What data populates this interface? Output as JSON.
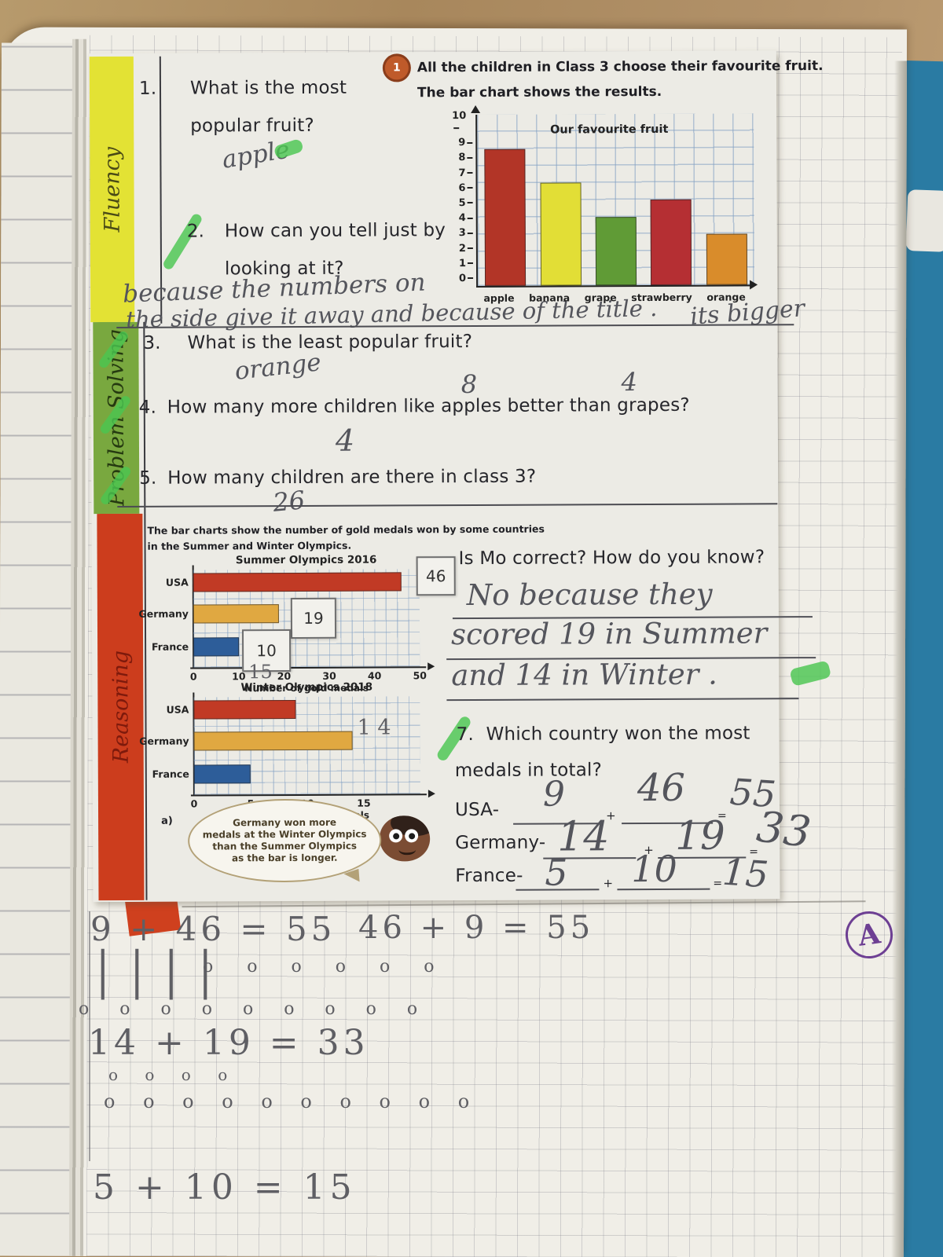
{
  "sidebar": {
    "fluency": "Fluency",
    "problem_solving": "Problem Solving",
    "reasoning": "Reasoning"
  },
  "header": {
    "badge": "1",
    "intro1": "All the children in Class 3 choose their favourite fruit.",
    "intro2": "The bar chart shows the results."
  },
  "questions": {
    "q1_num": "1.",
    "q1_text1": "What is the most",
    "q1_text2": "popular fruit?",
    "q1_answer": "apple",
    "q2_num": "2.",
    "q2_text1": "How can you tell just by",
    "q2_text2": "looking at it?",
    "q2_ans1": "because the numbers on",
    "q2_ans2": "the side give it away and because of the title .",
    "q2_ans3": "its bigger",
    "q3_num": "3.",
    "q3_text": "What is the least popular fruit?",
    "q3_answer": "orange",
    "q4_num": "4.",
    "q4_text": "How many more children like apples better than grapes?",
    "q4_note8": "8",
    "q4_note4": "4",
    "q4_answer": "4",
    "q5_num": "5.",
    "q5_text": "How many children are there in class 3?",
    "q5_answer": "26"
  },
  "olympics": {
    "intro1": "The bar charts show the number of gold medals won by some countries",
    "intro2": "in the Summer and Winter Olympics.",
    "box46": "46",
    "box19": "19",
    "box10": "10",
    "pencil15": "15",
    "pencil14": "1 4",
    "a_label": "a)",
    "bubble1": "Germany won more",
    "bubble2": "medals at the Winter Olympics",
    "bubble3": "than the Summer Olympics",
    "bubble4": "as the bar is longer."
  },
  "mo": {
    "question": "Is Mo correct? How do you know?",
    "ans1": "No because they",
    "ans2": "scored 19 in Summer",
    "ans3": "and 14 in Winter ."
  },
  "q7": {
    "num": "7.",
    "text1": "Which country won the most",
    "text2": "medals in total?",
    "plus": "+",
    "equals": "=",
    "rows": [
      {
        "label": "USA-",
        "a": "9",
        "b": "46",
        "sum": "55"
      },
      {
        "label": "Germany-",
        "a": "14",
        "b": "19",
        "sum": "33"
      },
      {
        "label": "France-",
        "a": "5",
        "b": "10",
        "sum": "15"
      }
    ]
  },
  "pencil": {
    "eq1": "9 + 46 = 55",
    "eq2": "46 + 9 = 55",
    "eq3": "14 + 19 = 33",
    "eq4": "5 + 10 = 15",
    "tally": "||||",
    "circles1": "o o o o o o",
    "circles2": "o o o o o o o o o",
    "circles3": "o o o o",
    "circles4": "o o o o o o o o o o",
    "stamp": "A"
  },
  "chart_data": [
    {
      "type": "bar",
      "title": "Our favourite fruit",
      "categories": [
        "apple",
        "banana",
        "grape",
        "strawberry",
        "orange"
      ],
      "values": [
        8,
        6,
        4,
        5,
        3
      ],
      "colors": [
        "#b23527",
        "#e2de36",
        "#609b36",
        "#b52f33",
        "#d98c2b"
      ],
      "ylim": [
        0,
        10
      ],
      "yticks": [
        10,
        9,
        8,
        7,
        6,
        5,
        4,
        3,
        2,
        1,
        0
      ],
      "orientation": "vertical",
      "grid": true
    },
    {
      "type": "bar",
      "title": "Summer Olympics 2016",
      "categories": [
        "USA",
        "Germany",
        "France"
      ],
      "values": [
        46,
        19,
        10
      ],
      "colors": [
        "#c13a25",
        "#e0a841",
        "#2d5d99"
      ],
      "xlim": [
        0,
        50
      ],
      "xticks": [
        0,
        10,
        20,
        30,
        40,
        50
      ],
      "xlabel": "Number of gold medals",
      "orientation": "horizontal",
      "grid": true
    },
    {
      "type": "bar",
      "title": "Winter Olympics 2018",
      "categories": [
        "USA",
        "Germany",
        "France"
      ],
      "values": [
        9,
        14,
        5
      ],
      "colors": [
        "#c13a25",
        "#e0a841",
        "#2d5d99"
      ],
      "xlim": [
        0,
        20
      ],
      "xticks": [
        0,
        5,
        10,
        15
      ],
      "xlabel": "Number of gold medals",
      "orientation": "horizontal",
      "grid": true
    }
  ]
}
